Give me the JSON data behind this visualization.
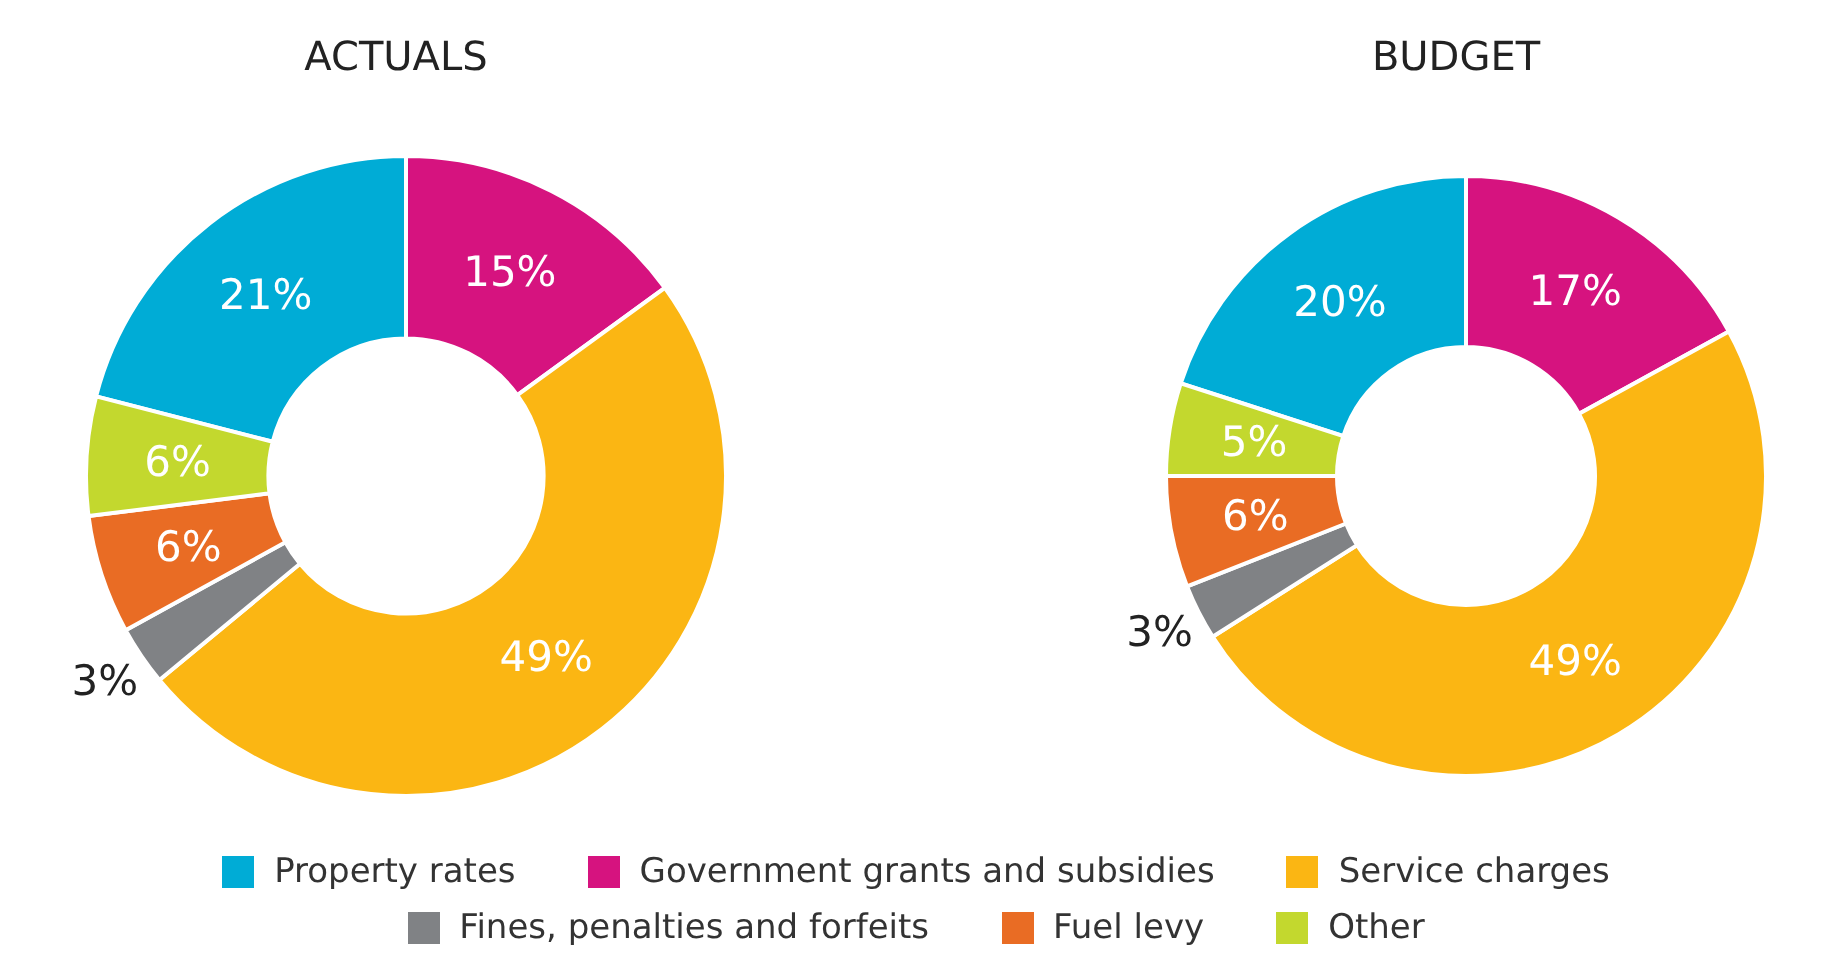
{
  "chart_data": [
    {
      "type": "donut",
      "title": "ACTUALS",
      "categories": [
        "Property rates",
        "Government grants and subsidies",
        "Service charges",
        "Fines, penalties and forfeits",
        "Fuel levy",
        "Other"
      ],
      "values": [
        21,
        15,
        49,
        3,
        6,
        6
      ],
      "value_labels": [
        "21%",
        "15%",
        "49%",
        "3%",
        "6%",
        "6%"
      ],
      "colors": [
        "#00acd6",
        "#d6137f",
        "#fbb613",
        "#808285",
        "#e96c24",
        "#c3d82e"
      ],
      "legend": "bottom"
    },
    {
      "type": "donut",
      "title": "BUDGET",
      "categories": [
        null,
        null,
        null,
        null,
        null,
        null
      ],
      "values": [
        20,
        17,
        49,
        3,
        6,
        5
      ],
      "value_labels": [
        "20%",
        "17%",
        "49%",
        "3%",
        "6%",
        "5%"
      ],
      "colors": [
        "#00acd6",
        "#d6137f",
        "#fbb613",
        "#808285",
        "#e96c24",
        "#c3d82e"
      ]
    }
  ]
}
